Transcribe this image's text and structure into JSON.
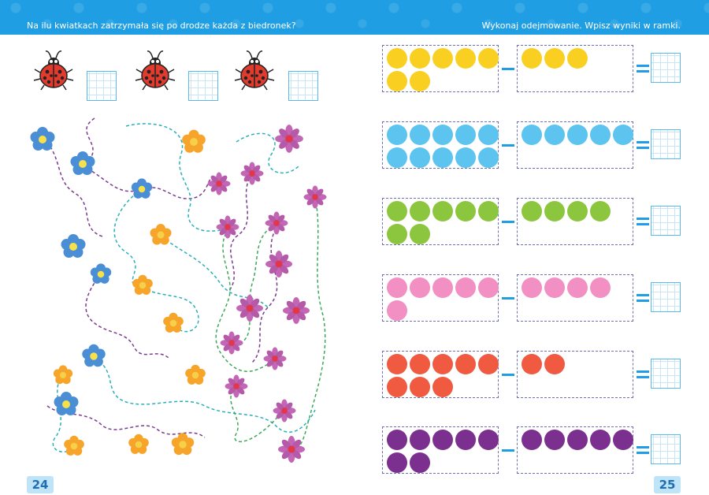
{
  "header": {
    "left_instruction": "Na ilu kwiatkach zatrzymała się po drodze każda z biedronek?",
    "right_instruction": "Wykonaj odejmowanie. Wpisz wyniki w ramki."
  },
  "colors": {
    "header": "#1f9ee3",
    "yellow": "#f9d022",
    "blue": "#5cc4ef",
    "green": "#8cc63e",
    "pink": "#f28fc3",
    "red": "#ef5a41",
    "purple": "#7b2f8e"
  },
  "subtraction_rows": [
    {
      "color": "#f9d022",
      "minuend": 7,
      "subtrahend": 3
    },
    {
      "color": "#5cc4ef",
      "minuend": 10,
      "subtrahend": 5
    },
    {
      "color": "#8cc63e",
      "minuend": 7,
      "subtrahend": 4
    },
    {
      "color": "#f28fc3",
      "minuend": 6,
      "subtrahend": 4
    },
    {
      "color": "#ef5a41",
      "minuend": 8,
      "subtrahend": 2
    },
    {
      "color": "#7b2f8e",
      "minuend": 7,
      "subtrahend": 5
    }
  ],
  "ladybugs": {
    "count": 3,
    "icon": "ladybug-icon"
  },
  "page_numbers": {
    "left": "24",
    "right": "25"
  }
}
